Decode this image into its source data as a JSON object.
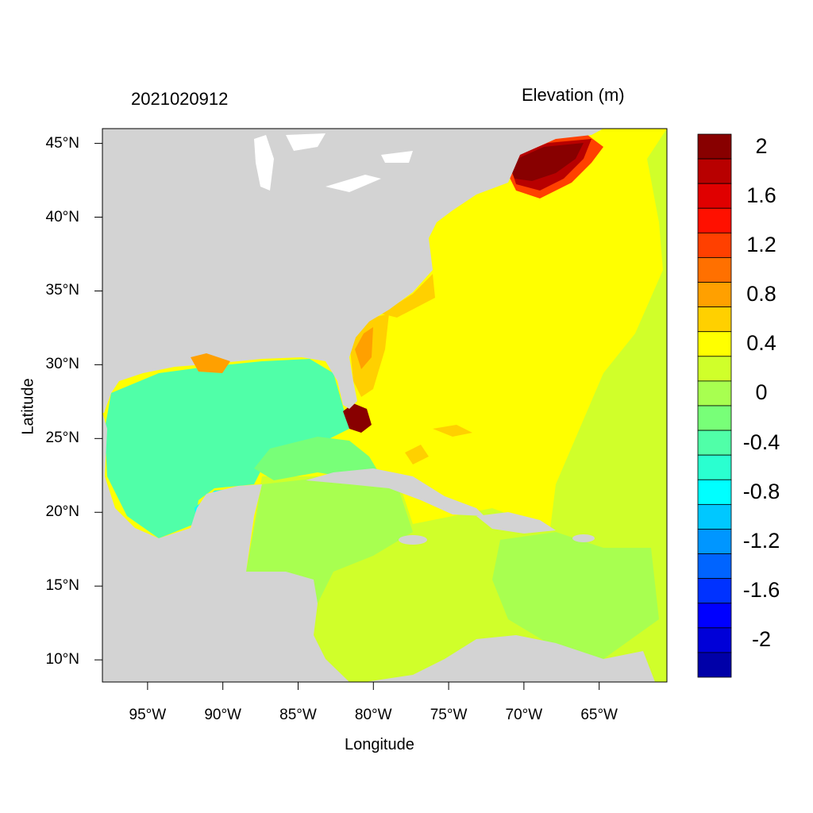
{
  "date_label": "2021020912",
  "variable_label": "Elevation (m)",
  "axes": {
    "x_title": "Longitude",
    "y_title": "Latitude",
    "x_range": [
      -98,
      -60.5
    ],
    "y_range": [
      8.5,
      46
    ],
    "x_ticks": [
      {
        "value": -95,
        "label": "95°W"
      },
      {
        "value": -90,
        "label": "90°W"
      },
      {
        "value": -85,
        "label": "85°W"
      },
      {
        "value": -80,
        "label": "80°W"
      },
      {
        "value": -75,
        "label": "75°W"
      },
      {
        "value": -70,
        "label": "70°W"
      },
      {
        "value": -65,
        "label": "65°W"
      }
    ],
    "y_ticks": [
      {
        "value": 45,
        "label": "45°N"
      },
      {
        "value": 40,
        "label": "40°N"
      },
      {
        "value": 35,
        "label": "35°N"
      },
      {
        "value": 30,
        "label": "30°N"
      },
      {
        "value": 25,
        "label": "25°N"
      },
      {
        "value": 20,
        "label": "20°N"
      },
      {
        "value": 15,
        "label": "15°N"
      },
      {
        "value": 10,
        "label": "10°N"
      }
    ]
  },
  "colorbar": {
    "colors": [
      "#0000a8",
      "#0000d8",
      "#0000ff",
      "#0032ff",
      "#0064ff",
      "#0096ff",
      "#00c8ff",
      "#00ffff",
      "#2affd0",
      "#50ffa8",
      "#78ff78",
      "#a8ff50",
      "#d0ff2a",
      "#ffff00",
      "#ffd000",
      "#ffa000",
      "#ff7000",
      "#ff4000",
      "#ff1000",
      "#e00000",
      "#b80000",
      "#880000"
    ],
    "labels": [
      {
        "value": 2,
        "label": "2"
      },
      {
        "value": 1.6,
        "label": "1.6"
      },
      {
        "value": 1.2,
        "label": "1.2"
      },
      {
        "value": 0.8,
        "label": "0.8"
      },
      {
        "value": 0.4,
        "label": "0.4"
      },
      {
        "value": 0,
        "label": "0"
      },
      {
        "value": -0.4,
        "label": "-0.4"
      },
      {
        "value": -0.8,
        "label": "-0.8"
      },
      {
        "value": -1.2,
        "label": "-1.2"
      },
      {
        "value": -1.6,
        "label": "-1.6"
      },
      {
        "value": -2,
        "label": "-2"
      }
    ]
  },
  "land_color": "#d3d3d3"
}
